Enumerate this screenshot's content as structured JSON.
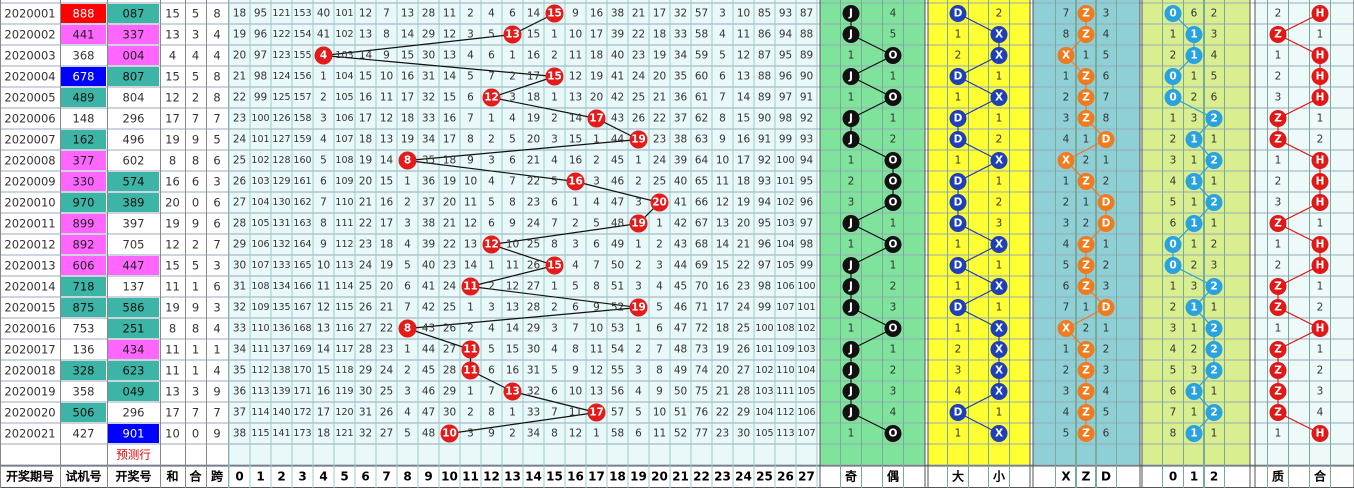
{
  "columns": {
    "issue": "开奖期号",
    "trial": "试机号",
    "draw": "开奖号",
    "sum": "和",
    "he": "合",
    "span": "跨"
  },
  "sum_columns": [
    0,
    1,
    2,
    3,
    4,
    5,
    6,
    7,
    8,
    9,
    10,
    11,
    12,
    13,
    14,
    15,
    16,
    17,
    18,
    19,
    20,
    21,
    22,
    23,
    24,
    25,
    26,
    27
  ],
  "predict_label": "预测行",
  "palette": {
    "r": {
      "bg": "#ff0000",
      "fg": "#ffffff"
    },
    "m": {
      "bg": "#ff66ff",
      "fg": "#222222"
    },
    "b": {
      "bg": "#0000ff",
      "fg": "#ffffff"
    },
    "t": {
      "bg": "#3cb5a6",
      "fg": "#111111"
    }
  },
  "ball_color": "#e41b1b",
  "rows": [
    {
      "issue": "2020001",
      "trial": "888",
      "trial_style": "r",
      "draw": "087",
      "draw_style": "t",
      "sum": 15,
      "he": 5,
      "span": 8,
      "omission": [
        18,
        95,
        121,
        153,
        40,
        101,
        12,
        7,
        13,
        28,
        11,
        2,
        4,
        6,
        14,
        15,
        9,
        16,
        38,
        21,
        17,
        32,
        57,
        3,
        10,
        85,
        93,
        87
      ]
    },
    {
      "issue": "2020002",
      "trial": "441",
      "trial_style": "m",
      "draw": "337",
      "draw_style": "m",
      "sum": 13,
      "he": 3,
      "span": 4,
      "omission": [
        19,
        96,
        122,
        154,
        41,
        102,
        13,
        8,
        14,
        29,
        12,
        3,
        5,
        13,
        15,
        1,
        10,
        17,
        39,
        22,
        18,
        33,
        58,
        4,
        11,
        86,
        94,
        88
      ]
    },
    {
      "issue": "2020003",
      "trial": "368",
      "draw": "004",
      "draw_style": "m",
      "sum": 4,
      "he": 4,
      "span": 4,
      "omission": [
        20,
        97,
        123,
        155,
        4,
        103,
        14,
        9,
        15,
        30,
        13,
        4,
        6,
        1,
        16,
        2,
        11,
        18,
        40,
        23,
        19,
        34,
        59,
        5,
        12,
        87,
        95,
        89
      ]
    },
    {
      "issue": "2020004",
      "trial": "678",
      "trial_style": "b",
      "draw": "807",
      "draw_style": "t",
      "sum": 15,
      "he": 5,
      "span": 8,
      "omission": [
        21,
        98,
        124,
        156,
        1,
        104,
        15,
        10,
        16,
        31,
        14,
        5,
        7,
        2,
        17,
        15,
        12,
        19,
        41,
        24,
        20,
        35,
        60,
        6,
        13,
        88,
        96,
        90
      ]
    },
    {
      "issue": "2020005",
      "trial": "489",
      "trial_style": "t",
      "draw": "804",
      "sum": 12,
      "he": 2,
      "span": 8,
      "omission": [
        22,
        99,
        125,
        157,
        2,
        105,
        16,
        11,
        17,
        32,
        15,
        6,
        12,
        3,
        18,
        1,
        13,
        20,
        42,
        25,
        21,
        36,
        61,
        7,
        14,
        89,
        97,
        91
      ]
    },
    {
      "issue": "2020006",
      "trial": "148",
      "draw": "296",
      "sum": 17,
      "he": 7,
      "span": 7,
      "omission": [
        23,
        100,
        126,
        158,
        3,
        106,
        17,
        12,
        18,
        33,
        16,
        7,
        1,
        4,
        19,
        2,
        14,
        17,
        43,
        26,
        22,
        37,
        62,
        8,
        15,
        90,
        98,
        92
      ]
    },
    {
      "issue": "2020007",
      "trial": "162",
      "trial_style": "t",
      "draw": "496",
      "sum": 19,
      "he": 9,
      "span": 5,
      "omission": [
        24,
        101,
        127,
        159,
        4,
        107,
        18,
        13,
        19,
        34,
        17,
        8,
        2,
        5,
        20,
        3,
        15,
        1,
        44,
        19,
        23,
        38,
        63,
        9,
        16,
        91,
        99,
        93
      ]
    },
    {
      "issue": "2020008",
      "trial": "377",
      "trial_style": "m",
      "draw": "602",
      "sum": 8,
      "he": 8,
      "span": 6,
      "omission": [
        25,
        102,
        128,
        160,
        5,
        108,
        19,
        14,
        8,
        35,
        18,
        9,
        3,
        6,
        21,
        4,
        16,
        2,
        45,
        1,
        24,
        39,
        64,
        10,
        17,
        92,
        100,
        94
      ]
    },
    {
      "issue": "2020009",
      "trial": "330",
      "trial_style": "m",
      "draw": "574",
      "draw_style": "t",
      "sum": 16,
      "he": 6,
      "span": 3,
      "omission": [
        26,
        103,
        129,
        161,
        6,
        109,
        20,
        15,
        1,
        36,
        19,
        10,
        4,
        7,
        22,
        5,
        16,
        3,
        46,
        2,
        25,
        40,
        65,
        11,
        18,
        93,
        101,
        95
      ]
    },
    {
      "issue": "2020010",
      "trial": "970",
      "trial_style": "t",
      "draw": "389",
      "draw_style": "t",
      "sum": 20,
      "he": 0,
      "span": 6,
      "omission": [
        27,
        104,
        130,
        162,
        7,
        110,
        21,
        16,
        2,
        37,
        20,
        11,
        5,
        8,
        23,
        6,
        1,
        4,
        47,
        3,
        20,
        41,
        66,
        12,
        19,
        94,
        102,
        96
      ]
    },
    {
      "issue": "2020011",
      "trial": "899",
      "trial_style": "m",
      "draw": "397",
      "sum": 19,
      "he": 9,
      "span": 6,
      "omission": [
        28,
        105,
        131,
        163,
        8,
        111,
        22,
        17,
        3,
        38,
        21,
        12,
        6,
        9,
        24,
        7,
        2,
        5,
        48,
        19,
        1,
        42,
        67,
        13,
        20,
        95,
        103,
        97
      ]
    },
    {
      "issue": "2020012",
      "trial": "892",
      "trial_style": "m",
      "draw": "705",
      "sum": 12,
      "he": 2,
      "span": 7,
      "omission": [
        29,
        106,
        132,
        164,
        9,
        112,
        23,
        18,
        4,
        39,
        22,
        13,
        12,
        10,
        25,
        8,
        3,
        6,
        49,
        1,
        2,
        43,
        68,
        14,
        21,
        96,
        104,
        98
      ]
    },
    {
      "issue": "2020013",
      "trial": "606",
      "trial_style": "m",
      "draw": "447",
      "draw_style": "m",
      "sum": 15,
      "he": 5,
      "span": 3,
      "omission": [
        30,
        107,
        133,
        165,
        10,
        113,
        24,
        19,
        5,
        40,
        23,
        14,
        1,
        11,
        26,
        15,
        4,
        7,
        50,
        2,
        3,
        44,
        69,
        15,
        22,
        97,
        105,
        99
      ]
    },
    {
      "issue": "2020014",
      "trial": "718",
      "trial_style": "t",
      "draw": "137",
      "sum": 11,
      "he": 1,
      "span": 6,
      "omission": [
        31,
        108,
        134,
        166,
        11,
        114,
        25,
        20,
        6,
        41,
        24,
        11,
        2,
        12,
        27,
        1,
        5,
        8,
        51,
        3,
        4,
        45,
        70,
        16,
        23,
        98,
        106,
        100
      ]
    },
    {
      "issue": "2020015",
      "trial": "875",
      "trial_style": "t",
      "draw": "586",
      "draw_style": "t",
      "sum": 19,
      "he": 9,
      "span": 3,
      "omission": [
        32,
        109,
        135,
        167,
        12,
        115,
        26,
        21,
        7,
        42,
        25,
        1,
        3,
        13,
        28,
        2,
        6,
        9,
        52,
        19,
        5,
        46,
        71,
        17,
        24,
        99,
        107,
        101
      ]
    },
    {
      "issue": "2020016",
      "trial": "753",
      "draw": "251",
      "draw_style": "t",
      "sum": 8,
      "he": 8,
      "span": 4,
      "omission": [
        33,
        110,
        136,
        168,
        13,
        116,
        27,
        22,
        8,
        43,
        26,
        2,
        4,
        14,
        29,
        3,
        7,
        10,
        53,
        1,
        6,
        47,
        72,
        18,
        25,
        100,
        108,
        102
      ]
    },
    {
      "issue": "2020017",
      "trial": "136",
      "draw": "434",
      "draw_style": "m",
      "sum": 11,
      "he": 1,
      "span": 1,
      "omission": [
        34,
        111,
        137,
        169,
        14,
        117,
        28,
        23,
        1,
        44,
        27,
        11,
        5,
        15,
        30,
        4,
        8,
        11,
        54,
        2,
        7,
        48,
        73,
        19,
        26,
        101,
        109,
        103
      ]
    },
    {
      "issue": "2020018",
      "trial": "328",
      "trial_style": "t",
      "draw": "623",
      "draw_style": "t",
      "sum": 11,
      "he": 1,
      "span": 4,
      "omission": [
        35,
        112,
        138,
        170,
        15,
        118,
        29,
        24,
        2,
        45,
        28,
        11,
        6,
        16,
        31,
        5,
        9,
        12,
        55,
        3,
        8,
        49,
        74,
        20,
        27,
        102,
        110,
        104
      ]
    },
    {
      "issue": "2020019",
      "trial": "358",
      "draw": "049",
      "draw_style": "t",
      "sum": 13,
      "he": 3,
      "span": 9,
      "omission": [
        36,
        113,
        139,
        171,
        16,
        119,
        30,
        25,
        3,
        46,
        29,
        1,
        7,
        13,
        32,
        6,
        10,
        13,
        56,
        4,
        9,
        50,
        75,
        21,
        28,
        103,
        111,
        105
      ]
    },
    {
      "issue": "2020020",
      "trial": "506",
      "trial_style": "t",
      "draw": "296",
      "sum": 17,
      "he": 7,
      "span": 7,
      "omission": [
        37,
        114,
        140,
        172,
        17,
        120,
        31,
        26,
        4,
        47,
        30,
        2,
        8,
        1,
        33,
        7,
        11,
        17,
        57,
        5,
        10,
        51,
        76,
        22,
        29,
        104,
        112,
        106
      ]
    },
    {
      "issue": "2020021",
      "trial": "427",
      "draw": "901",
      "draw_style": "b",
      "sum": 10,
      "he": 0,
      "span": 9,
      "omission": [
        38,
        115,
        141,
        173,
        18,
        121,
        32,
        27,
        5,
        48,
        10,
        3,
        9,
        2,
        34,
        8,
        12,
        1,
        58,
        6,
        11,
        52,
        77,
        23,
        30,
        105,
        113,
        107
      ]
    }
  ],
  "sections": [
    {
      "header": [
        "奇",
        "偶"
      ],
      "bg": "#7fe39c",
      "ball": "#111111",
      "values": [
        [
          "J",
          4
        ],
        [
          "J",
          5
        ],
        [
          1,
          "O"
        ],
        [
          "J",
          1
        ],
        [
          1,
          "O"
        ],
        [
          "J",
          1
        ],
        [
          "J",
          2
        ],
        [
          1,
          "O"
        ],
        [
          2,
          "O"
        ],
        [
          3,
          "O"
        ],
        [
          "J",
          1
        ],
        [
          1,
          "O"
        ],
        [
          "J",
          1
        ],
        [
          "J",
          2
        ],
        [
          "J",
          3
        ],
        [
          1,
          "O"
        ],
        [
          "J",
          1
        ],
        [
          "J",
          2
        ],
        [
          "J",
          3
        ],
        [
          "J",
          4
        ],
        [
          1,
          "O"
        ]
      ]
    },
    {
      "header": [
        "大",
        "小"
      ],
      "bg": "#ffff33",
      "ball": "#1e3fb8",
      "values": [
        [
          "D",
          2
        ],
        [
          1,
          "X"
        ],
        [
          2,
          "X"
        ],
        [
          "D",
          1
        ],
        [
          1,
          "X"
        ],
        [
          "D",
          1
        ],
        [
          "D",
          2
        ],
        [
          1,
          "X"
        ],
        [
          "D",
          1
        ],
        [
          "D",
          2
        ],
        [
          "D",
          3
        ],
        [
          1,
          "X"
        ],
        [
          "D",
          1
        ],
        [
          1,
          "X"
        ],
        [
          "D",
          1
        ],
        [
          1,
          "X"
        ],
        [
          2,
          "X"
        ],
        [
          3,
          "X"
        ],
        [
          4,
          "X"
        ],
        [
          "D",
          1
        ],
        [
          1,
          "X"
        ]
      ]
    },
    {
      "header": [
        "X",
        "Z",
        "D"
      ],
      "bg": "#8fd0d6",
      "ball": "#f07a1e",
      "values": [
        [
          7,
          "Z",
          3
        ],
        [
          8,
          "Z",
          4
        ],
        [
          "X",
          1,
          5
        ],
        [
          1,
          "Z",
          6
        ],
        [
          2,
          "Z",
          7
        ],
        [
          3,
          "Z",
          8
        ],
        [
          4,
          1,
          "D"
        ],
        [
          "X",
          2,
          1
        ],
        [
          1,
          "Z",
          2
        ],
        [
          2,
          1,
          "D"
        ],
        [
          3,
          2,
          "D"
        ],
        [
          4,
          "Z",
          1
        ],
        [
          5,
          "Z",
          2
        ],
        [
          6,
          "Z",
          3
        ],
        [
          7,
          1,
          "D"
        ],
        [
          "X",
          2,
          1
        ],
        [
          1,
          "Z",
          2
        ],
        [
          2,
          "Z",
          3
        ],
        [
          3,
          "Z",
          4
        ],
        [
          4,
          "Z",
          5
        ],
        [
          5,
          "Z",
          6
        ]
      ]
    },
    {
      "header": [
        "0",
        "1",
        "2"
      ],
      "bg": "#d9ee8e",
      "ball": "#29a3e0",
      "values": [
        [
          "0",
          6,
          2
        ],
        [
          1,
          "1",
          3
        ],
        [
          2,
          "1",
          4
        ],
        [
          "0",
          1,
          5
        ],
        [
          "0",
          2,
          6
        ],
        [
          1,
          3,
          "2"
        ],
        [
          2,
          "1",
          1
        ],
        [
          3,
          1,
          "2"
        ],
        [
          4,
          "1",
          1
        ],
        [
          5,
          1,
          "2"
        ],
        [
          6,
          "1",
          1
        ],
        [
          "0",
          1,
          2
        ],
        [
          "0",
          2,
          3
        ],
        [
          1,
          3,
          "2"
        ],
        [
          2,
          "1",
          1
        ],
        [
          3,
          1,
          "2"
        ],
        [
          4,
          2,
          "2"
        ],
        [
          5,
          3,
          "2"
        ],
        [
          6,
          "1",
          1
        ],
        [
          7,
          1,
          "2"
        ],
        [
          8,
          "1",
          1
        ]
      ]
    },
    {
      "header": [
        "质",
        "合"
      ],
      "bg": "#eefafa",
      "ball": "#e01818",
      "values": [
        [
          2,
          "H"
        ],
        [
          "Z",
          1
        ],
        [
          1,
          "H"
        ],
        [
          2,
          "H"
        ],
        [
          3,
          "H"
        ],
        [
          "Z",
          1
        ],
        [
          "Z",
          2
        ],
        [
          1,
          "H"
        ],
        [
          2,
          "H"
        ],
        [
          3,
          "H"
        ],
        [
          "Z",
          1
        ],
        [
          1,
          "H"
        ],
        [
          2,
          "H"
        ],
        [
          "Z",
          1
        ],
        [
          "Z",
          2
        ],
        [
          1,
          "H"
        ],
        [
          "Z",
          1
        ],
        [
          "Z",
          2
        ],
        [
          "Z",
          3
        ],
        [
          "Z",
          4
        ],
        [
          1,
          "H"
        ]
      ]
    }
  ]
}
